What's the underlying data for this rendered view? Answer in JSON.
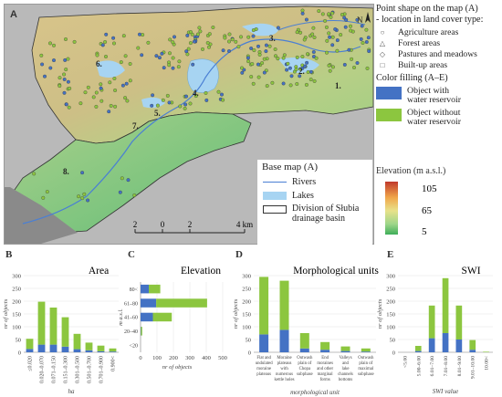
{
  "map": {
    "panel_letter": "A",
    "region_labels": [
      "1.",
      "2.",
      "3.",
      "4.",
      "5.",
      "6.",
      "7.",
      "8."
    ],
    "north_label": "N",
    "scale": {
      "ticks": [
        "2",
        "0",
        "2",
        "4 km"
      ]
    }
  },
  "legend": {
    "title_line1": "Point shape on the map (A)",
    "title_line2": "- location in land cover type:",
    "items": [
      {
        "label": "Agriculture areas",
        "icon": "circle-icon"
      },
      {
        "label": "Forest areas",
        "icon": "triangle-icon"
      },
      {
        "label": "Pastures and meadows",
        "icon": "diamond-icon"
      },
      {
        "label": "Built-up areas",
        "icon": "square-icon"
      }
    ],
    "fill_title": "Color filling (A–E)",
    "fills": [
      {
        "line1": "Object with",
        "line2": "water reservoir",
        "color": "#4472c4"
      },
      {
        "line1": "Object without",
        "line2": "water reservoir",
        "color": "#8cc63f"
      }
    ]
  },
  "base_map": {
    "title": "Base map (A)",
    "items": [
      {
        "label": "Rivers",
        "kind": "line",
        "color": "#4a7fd4"
      },
      {
        "label": "Lakes",
        "kind": "fill",
        "color": "#a7d4f2"
      },
      {
        "label": "Division of Słubia",
        "label2": "drainage basin",
        "kind": "outline",
        "color": "#333333"
      }
    ]
  },
  "elevation_legend": {
    "title": "Elevation (m a.s.l.)",
    "max": "105",
    "mid": "65",
    "min": "5"
  },
  "colors": {
    "with_reservoir": "#4472c4",
    "without_reservoir": "#8cc63f"
  },
  "chart_data": [
    {
      "panel": "B",
      "type": "bar",
      "stacked": true,
      "title": "Area",
      "xlabel": "ha",
      "ylabel": "nr of objects",
      "categories": [
        "≤0.020",
        "0.020–0.070",
        "0.071–0.150",
        "0.151–0.300",
        "0.301–0.500",
        "0.501–0.700",
        "0.701–0.900",
        "0.900<"
      ],
      "series": [
        {
          "name": "Object with water reservoir",
          "values": [
            13,
            30,
            30,
            22,
            12,
            8,
            4,
            3
          ]
        },
        {
          "name": "Object without water reservoir",
          "values": [
            40,
            168,
            145,
            115,
            60,
            30,
            22,
            12
          ]
        }
      ],
      "ylim": [
        0,
        300
      ],
      "yticks": [
        0,
        50,
        100,
        150,
        200,
        250,
        300
      ]
    },
    {
      "panel": "C",
      "type": "bar",
      "orientation": "horizontal",
      "stacked": true,
      "title": "Elevation",
      "xlabel": "nr of objects",
      "ylabel": "m a.s.l.",
      "categories": [
        "80<",
        "61–80",
        "41–60",
        "20–40",
        "<20"
      ],
      "series": [
        {
          "name": "Object with water reservoir",
          "values": [
            50,
            95,
            75,
            2,
            0
          ]
        },
        {
          "name": "Object without water reservoir",
          "values": [
            70,
            310,
            115,
            8,
            0
          ]
        }
      ],
      "xlim": [
        0,
        500
      ],
      "xticks": [
        0,
        100,
        200,
        300,
        400,
        500
      ]
    },
    {
      "panel": "D",
      "type": "bar",
      "stacked": true,
      "title": "Morphological units",
      "xlabel": "morphological unit",
      "ylabel": "nr of objects",
      "categories": [
        [
          "Flat and",
          "undulated",
          "moraine",
          "plateaus"
        ],
        [
          "Moraine",
          "plateaus",
          "with",
          "numerous",
          "kettle holes"
        ],
        [
          "Outwash",
          "plain of",
          "Chopa",
          "subphase"
        ],
        [
          "End",
          "moraines",
          "and other",
          "marginal",
          "forms"
        ],
        [
          "Valleys",
          "and",
          "lake",
          "channels",
          "bottoms"
        ],
        [
          "Outwash",
          "plain of",
          "maximal",
          "subphase"
        ]
      ],
      "series": [
        {
          "name": "Object with water reservoir",
          "values": [
            70,
            88,
            15,
            10,
            5,
            3
          ]
        },
        {
          "name": "Object without water reservoir",
          "values": [
            225,
            192,
            60,
            30,
            18,
            12
          ]
        }
      ],
      "ylim": [
        0,
        300
      ],
      "yticks": [
        0,
        50,
        100,
        150,
        200,
        250,
        300
      ]
    },
    {
      "panel": "E",
      "type": "bar",
      "stacked": true,
      "title": "SWI",
      "xlabel": "SWI value",
      "ylabel": "nr of objects",
      "categories": [
        "<5.00",
        "5.00–6.00",
        "6.01–7.00",
        "7.01–8.00",
        "8.01–9.00",
        "9.01–10.00",
        "10.00<"
      ],
      "series": [
        {
          "name": "Object with water reservoir",
          "values": [
            0,
            5,
            55,
            75,
            50,
            10,
            0
          ]
        },
        {
          "name": "Object without water reservoir",
          "values": [
            0,
            20,
            128,
            215,
            133,
            38,
            2
          ]
        }
      ],
      "ylim": [
        0,
        300
      ],
      "yticks": [
        0,
        50,
        100,
        150,
        200,
        250,
        300
      ]
    }
  ]
}
